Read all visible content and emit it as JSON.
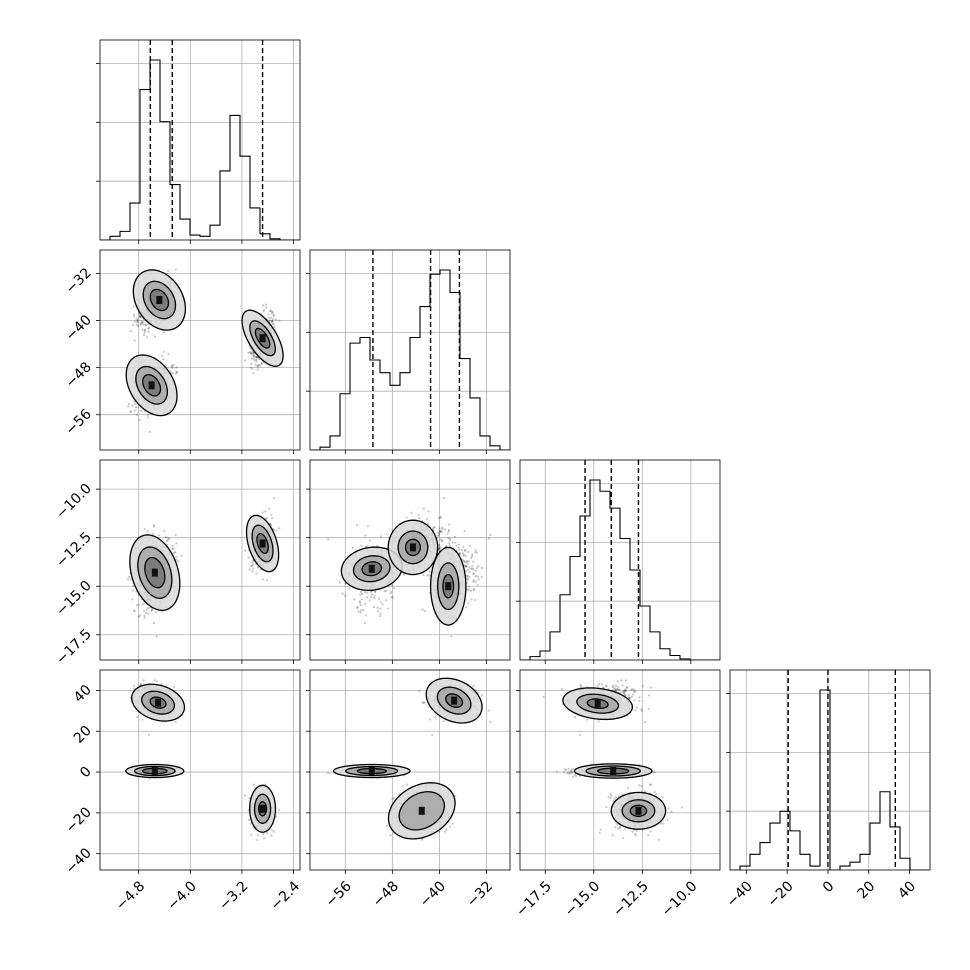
{
  "figure": {
    "type": "corner-plot",
    "background": "#ffffff",
    "grid": true,
    "grid_color": "#b0b0b0"
  },
  "chart_data": {
    "type": "corner",
    "variables": [
      {
        "range": [
          -5.4,
          -2.3
        ],
        "ticks": [
          -4.8,
          -4.0,
          -3.2,
          -2.4
        ],
        "tick_labels": [
          "−4.8",
          "−4.0",
          "−3.2",
          "−2.4"
        ],
        "quantiles": [
          -4.62,
          -4.28,
          -2.88
        ],
        "hist": {
          "edges": [
            -5.4,
            -5.245,
            -5.09,
            -4.935,
            -4.78,
            -4.625,
            -4.47,
            -4.315,
            -4.16,
            -4.005,
            -3.85,
            -3.695,
            -3.54,
            -3.385,
            -3.23,
            -3.075,
            -2.92,
            -2.765,
            -2.61,
            -2.455,
            -2.3
          ],
          "counts": [
            0,
            3,
            7,
            30,
            122,
            146,
            96,
            45,
            17,
            4,
            3,
            12,
            56,
            101,
            68,
            26,
            5,
            1,
            0,
            0
          ]
        }
      },
      {
        "range": [
          -62,
          -28
        ],
        "ticks": [
          -56,
          -48,
          -40,
          -32
        ],
        "tick_labels": [
          "−56",
          "−48",
          "−40",
          "−32"
        ],
        "quantiles": [
          -51.3,
          -41.5,
          -36.6
        ],
        "hist": {
          "edges": [
            -62,
            -60.3,
            -58.6,
            -56.9,
            -55.2,
            -53.5,
            -51.8,
            -50.1,
            -48.4,
            -46.7,
            -45,
            -43.3,
            -41.6,
            -39.9,
            -38.2,
            -36.5,
            -34.8,
            -33.1,
            -31.4,
            -29.7,
            -28
          ],
          "counts": [
            0,
            2,
            10,
            40,
            76,
            80,
            64,
            55,
            46,
            55,
            80,
            102,
            125,
            128,
            112,
            65,
            37,
            10,
            3,
            0
          ]
        }
      },
      {
        "range": [
          -18.8,
          -8.5
        ],
        "ticks": [
          -17.5,
          -15.0,
          -12.5,
          -10.0
        ],
        "tick_labels": [
          "−17.5",
          "−15.0",
          "−12.5",
          "−10.0"
        ],
        "quantiles": [
          -15.45,
          -14.1,
          -12.7
        ],
        "hist": {
          "edges": [
            -18.8,
            -18.285,
            -17.77,
            -17.255,
            -16.74,
            -16.225,
            -15.71,
            -15.195,
            -14.68,
            -14.165,
            -13.65,
            -13.135,
            -12.62,
            -12.105,
            -11.59,
            -11.075,
            -10.56,
            -10.045,
            -9.53,
            -9.015,
            -8.5
          ],
          "counts": [
            0,
            3,
            8,
            25,
            58,
            92,
            128,
            160,
            150,
            135,
            108,
            80,
            48,
            25,
            10,
            4,
            1,
            0,
            0,
            0
          ]
        }
      },
      {
        "range": [
          -48,
          50
        ],
        "ticks": [
          -40,
          -20,
          0,
          20,
          40
        ],
        "tick_labels": [
          "−40",
          "−20",
          "0",
          "20",
          "40"
        ],
        "quantiles": [
          -19.5,
          0,
          33
        ],
        "hist": {
          "edges": [
            -48,
            -43.1,
            -38.2,
            -33.3,
            -28.4,
            -23.5,
            -18.6,
            -13.7,
            -8.8,
            -3.9,
            1,
            5.9,
            10.8,
            15.7,
            20.6,
            25.5,
            30.4,
            35.3,
            40.2,
            45.1,
            50
          ],
          "counts": [
            0,
            1,
            4,
            7,
            12,
            15,
            10,
            4,
            1,
            46,
            0,
            1,
            2,
            4,
            12,
            20,
            11,
            3,
            0,
            0
          ]
        }
      }
    ],
    "modes": [
      {
        "mean": [
          -4.55,
          -37.5,
          -14.3,
          35
        ],
        "sd": [
          0.15,
          2.2,
          0.85,
          4.2
        ],
        "rho": [
          0.5,
          0.25,
          -0.2,
          0.2,
          -0.3,
          -0.25
        ],
        "weight": 0.33
      },
      {
        "mean": [
          -4.55,
          -51.0,
          -14.3,
          0
        ],
        "sd": [
          0.15,
          2.2,
          0.85,
          1.0
        ],
        "rho": [
          0.5,
          0.25,
          0.0,
          0.2,
          0.0,
          0.0
        ],
        "weight": 0.33
      },
      {
        "mean": [
          -2.88,
          -43.0,
          -12.8,
          -19
        ],
        "sd": [
          0.09,
          2.2,
          0.65,
          5.0
        ],
        "rho": [
          0.5,
          0.25,
          -0.05,
          0.2,
          0.3,
          0.0
        ],
        "weight": 0.34
      }
    ],
    "contours": {
      "0": {
        "1": [
          {
            "center": [
              -4.48,
              -36.5
            ],
            "semi": [
              0.36,
              5.5
            ],
            "angle": 0.55,
            "levels": [
              1,
              0.62,
              0.35
            ]
          },
          {
            "center": [
              -4.6,
              -51.0
            ],
            "semi": [
              0.34,
              5.6
            ],
            "angle": 0.55,
            "levels": [
              1,
              0.62,
              0.35
            ]
          },
          {
            "center": [
              -2.88,
              -43.0
            ],
            "semi": [
              0.22,
              5.4
            ],
            "angle": 0.55,
            "levels": [
              1,
              0.62,
              0.35
            ]
          }
        ],
        "2": [
          {
            "center": [
              -4.55,
              -14.3
            ],
            "semi": [
              0.36,
              2.0
            ],
            "angle": 0.3,
            "levels": [
              1,
              0.68,
              0.4
            ]
          },
          {
            "center": [
              -2.88,
              -12.8
            ],
            "semi": [
              0.22,
              1.5
            ],
            "angle": 0.3,
            "levels": [
              1,
              0.65,
              0.35
            ]
          }
        ],
        "3": [
          {
            "center": [
              -4.5,
              34.0
            ],
            "semi": [
              0.42,
              8.5
            ],
            "angle": -0.3,
            "levels": [
              1,
              0.62,
              0.3
            ]
          },
          {
            "center": [
              -4.55,
              0.5
            ],
            "semi": [
              0.45,
              3.2
            ],
            "angle": 0.0,
            "levels": [
              1,
              0.7,
              0.42
            ]
          },
          {
            "center": [
              -2.88,
              -18.0
            ],
            "semi": [
              0.2,
              11.5
            ],
            "angle": 0.0,
            "levels": [
              1,
              0.62,
              0.3
            ]
          }
        ]
      },
      "1": {
        "2": [
          {
            "center": [
              -51.5,
              -14.1
            ],
            "semi": [
              5.2,
              1.1
            ],
            "angle": 0.15,
            "levels": [
              1,
              0.6,
              0.32
            ]
          },
          {
            "center": [
              -44.5,
              -13.0
            ],
            "semi": [
              4.2,
              1.4
            ],
            "angle": 0.0,
            "levels": [
              1,
              0.6,
              0.3
            ]
          },
          {
            "center": [
              -38.5,
              -15.0
            ],
            "semi": [
              3.0,
              2.0
            ],
            "angle": 0.0,
            "levels": [
              1,
              0.6,
              0.3
            ]
          }
        ],
        "3": [
          {
            "center": [
              -37.5,
              35.0
            ],
            "semi": [
              5.0,
              10.0
            ],
            "angle": -0.45,
            "levels": [
              1,
              0.6,
              0.3
            ]
          },
          {
            "center": [
              -51.5,
              0.5
            ],
            "semi": [
              6.5,
              3.2
            ],
            "angle": 0.0,
            "levels": [
              1,
              0.68,
              0.38
            ]
          },
          {
            "center": [
              -43.0,
              -19.0
            ],
            "semi": [
              6.0,
              12.5
            ],
            "angle": 0.5,
            "levels": [
              1,
              0.68
            ]
          }
        ]
      },
      "2": {
        "3": [
          {
            "center": [
              -14.8,
              33.5
            ],
            "semi": [
              1.8,
              7.5
            ],
            "angle": -0.12,
            "levels": [
              1,
              0.6,
              0.3
            ]
          },
          {
            "center": [
              -14.0,
              0.5
            ],
            "semi": [
              2.0,
              3.5
            ],
            "angle": 0.0,
            "levels": [
              1,
              0.7,
              0.4
            ]
          },
          {
            "center": [
              -12.7,
              -19.0
            ],
            "semi": [
              1.4,
              9.0
            ],
            "angle": 0.0,
            "levels": [
              1,
              0.6,
              0.3
            ]
          }
        ]
      }
    }
  }
}
